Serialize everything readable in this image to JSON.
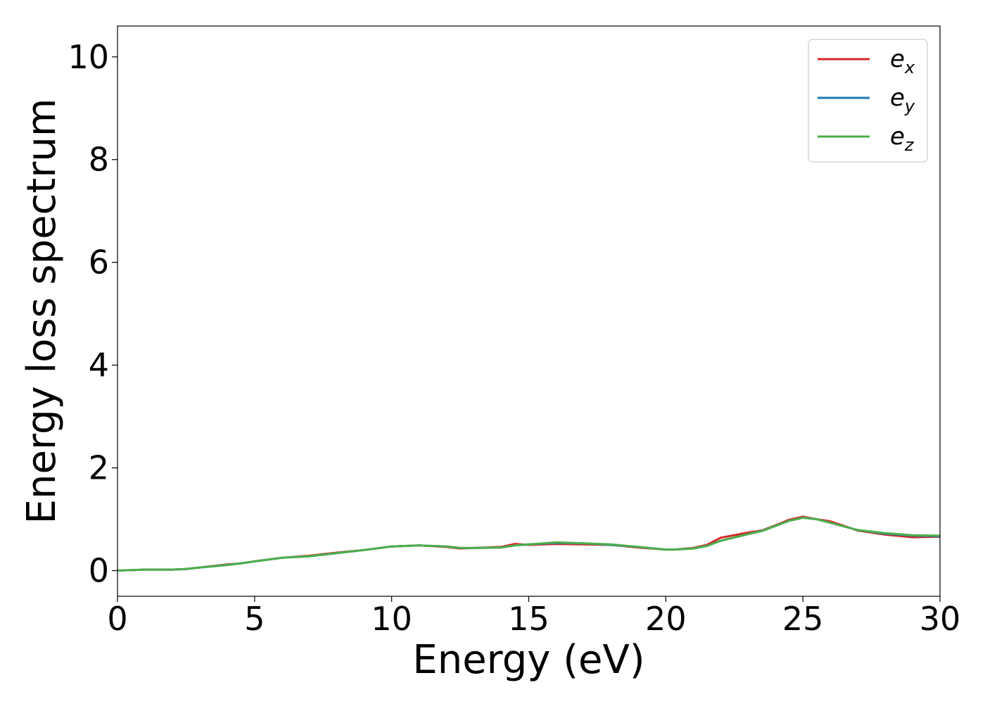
{
  "chart_data": {
    "type": "line",
    "title": "",
    "xlabel": "Energy (eV)",
    "ylabel": "Energy loss spectrum",
    "xlim": [
      0,
      30
    ],
    "ylim": [
      -0.5,
      10.6
    ],
    "xticks": [
      0,
      5,
      10,
      15,
      20,
      25,
      30
    ],
    "yticks": [
      0,
      2,
      4,
      6,
      8,
      10
    ],
    "grid": false,
    "legend_position": "top-right",
    "x": [
      0,
      1,
      2,
      2.5,
      3,
      4,
      4.5,
      5,
      6,
      7,
      8,
      9,
      10,
      11,
      12,
      12.5,
      13,
      14,
      14.5,
      15,
      16,
      17,
      18,
      19,
      20,
      20.3,
      21,
      21.5,
      22,
      23,
      23.5,
      24,
      24.5,
      25,
      25.5,
      26,
      27,
      28,
      29,
      30
    ],
    "series": [
      {
        "name": "e",
        "sub": "x",
        "color": "#d62728",
        "values": [
          0.0,
          0.02,
          0.02,
          0.03,
          0.06,
          0.12,
          0.14,
          0.18,
          0.25,
          0.29,
          0.35,
          0.4,
          0.47,
          0.49,
          0.46,
          0.43,
          0.44,
          0.46,
          0.52,
          0.5,
          0.52,
          0.51,
          0.5,
          0.45,
          0.41,
          0.41,
          0.44,
          0.5,
          0.64,
          0.74,
          0.78,
          0.88,
          0.99,
          1.05,
          1.0,
          0.96,
          0.78,
          0.7,
          0.65,
          0.66
        ]
      },
      {
        "name": "e",
        "sub": "y",
        "color": "#1f77b4",
        "values": [
          0.0,
          0.02,
          0.02,
          0.03,
          0.06,
          0.11,
          0.14,
          0.18,
          0.25,
          0.28,
          0.34,
          0.4,
          0.47,
          0.49,
          0.47,
          0.44,
          0.44,
          0.45,
          0.49,
          0.51,
          0.54,
          0.53,
          0.5,
          0.46,
          0.41,
          0.41,
          0.43,
          0.48,
          0.58,
          0.71,
          0.77,
          0.87,
          0.97,
          1.03,
          1.0,
          0.93,
          0.79,
          0.72,
          0.68,
          0.67
        ]
      },
      {
        "name": "e",
        "sub": "z",
        "color": "#4daf4a",
        "values": [
          0.0,
          0.02,
          0.02,
          0.03,
          0.06,
          0.11,
          0.14,
          0.18,
          0.25,
          0.28,
          0.34,
          0.4,
          0.47,
          0.49,
          0.47,
          0.44,
          0.44,
          0.45,
          0.49,
          0.51,
          0.55,
          0.53,
          0.51,
          0.46,
          0.41,
          0.41,
          0.43,
          0.48,
          0.58,
          0.71,
          0.77,
          0.87,
          0.97,
          1.03,
          1.0,
          0.93,
          0.79,
          0.73,
          0.69,
          0.68
        ]
      }
    ]
  }
}
